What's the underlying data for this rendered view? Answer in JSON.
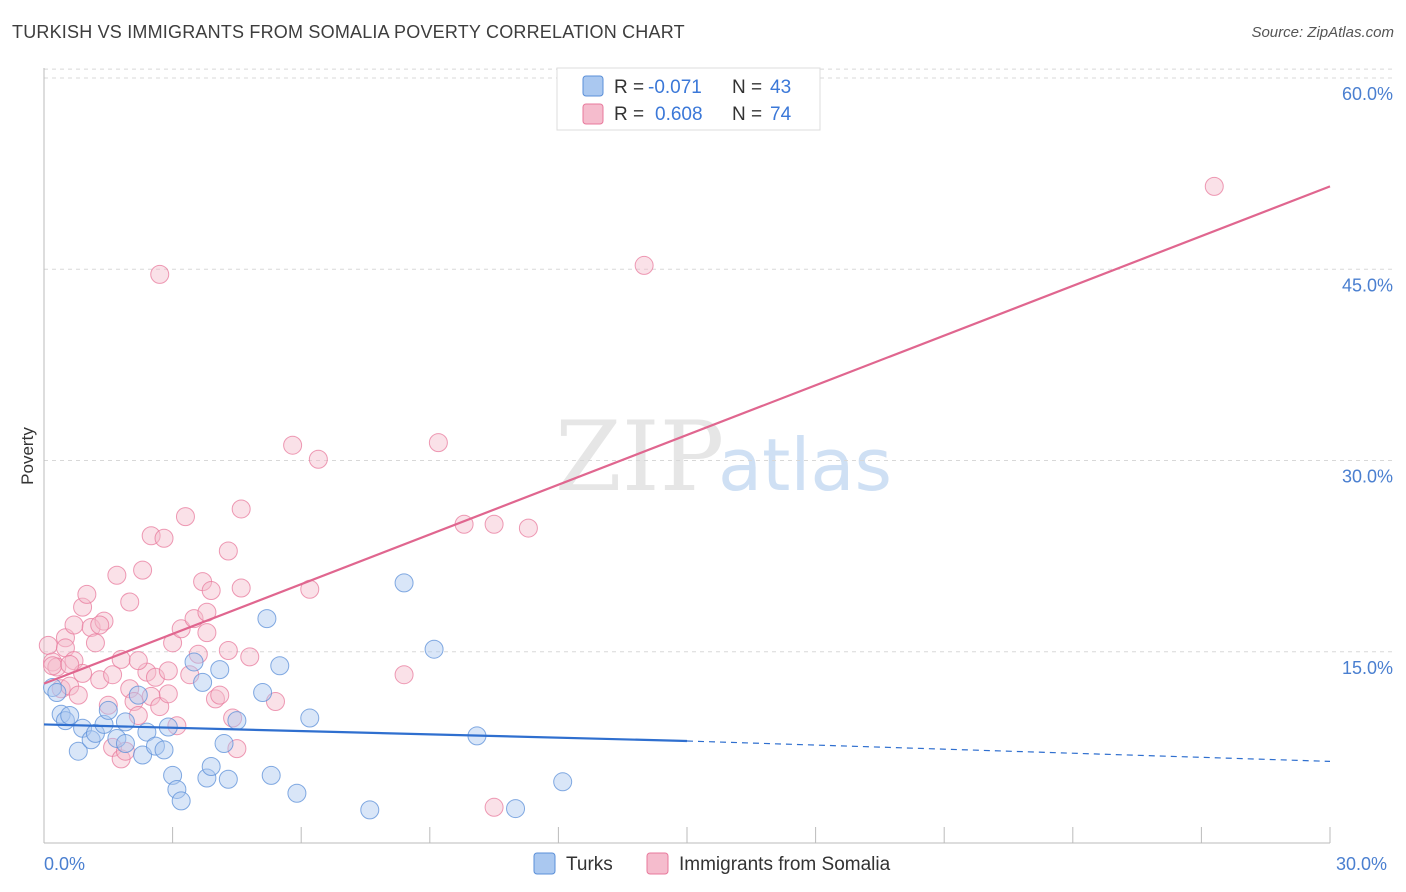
{
  "header": {
    "title": "TURKISH VS IMMIGRANTS FROM SOMALIA POVERTY CORRELATION CHART",
    "source": "Source: ZipAtlas.com"
  },
  "watermark": {
    "zip": "ZIP",
    "atlas": "atlas"
  },
  "colors": {
    "turks": "#5b8fd8",
    "turks_fill": "#aac8f0",
    "somalia": "#e8799c",
    "somalia_fill": "#f5bccd",
    "blue_text": "#3b78d8",
    "grid": "#d8d8d8"
  },
  "legend_stats": [
    {
      "r_label": "R =",
      "r_value": "-0.071",
      "n_label": "N =",
      "n_value": "43"
    },
    {
      "r_label": "R =",
      "r_value": "0.608",
      "n_label": "N =",
      "n_value": "74"
    }
  ],
  "chart_data": {
    "type": "scatter",
    "xlabel": "",
    "ylabel": "Poverty",
    "xlim": [
      0,
      30
    ],
    "ylim": [
      0,
      60
    ],
    "x_tick_labels": {
      "min": "0.0%",
      "max": "30.0%"
    },
    "y_ticks": [
      {
        "value": 15,
        "label": "15.0%"
      },
      {
        "value": 30,
        "label": "30.0%"
      },
      {
        "value": 45,
        "label": "45.0%"
      },
      {
        "value": 60,
        "label": "60.0%"
      }
    ],
    "series": [
      {
        "name": "Turks",
        "trend": {
          "x0": 0,
          "y0": 9.3,
          "x1": 15,
          "y1": 8.0,
          "dash_to_x": 30,
          "dash_to_y": 6.4
        },
        "points": [
          [
            0.2,
            12.2
          ],
          [
            0.3,
            11.8
          ],
          [
            0.4,
            10.1
          ],
          [
            0.5,
            9.6
          ],
          [
            0.6,
            10.0
          ],
          [
            0.8,
            7.2
          ],
          [
            0.9,
            9.0
          ],
          [
            1.1,
            8.1
          ],
          [
            1.2,
            8.6
          ],
          [
            1.4,
            9.3
          ],
          [
            1.5,
            10.4
          ],
          [
            1.7,
            8.2
          ],
          [
            1.9,
            9.5
          ],
          [
            1.9,
            7.8
          ],
          [
            2.2,
            11.6
          ],
          [
            2.3,
            6.9
          ],
          [
            2.4,
            8.7
          ],
          [
            2.6,
            7.6
          ],
          [
            2.8,
            7.3
          ],
          [
            2.9,
            9.1
          ],
          [
            3.0,
            5.3
          ],
          [
            3.1,
            4.2
          ],
          [
            3.2,
            3.3
          ],
          [
            3.5,
            14.2
          ],
          [
            3.7,
            12.6
          ],
          [
            3.8,
            5.1
          ],
          [
            3.9,
            6.0
          ],
          [
            4.1,
            13.6
          ],
          [
            4.2,
            7.8
          ],
          [
            4.3,
            5.0
          ],
          [
            4.5,
            9.6
          ],
          [
            5.1,
            11.8
          ],
          [
            5.2,
            17.6
          ],
          [
            5.3,
            5.3
          ],
          [
            5.5,
            13.9
          ],
          [
            5.9,
            3.9
          ],
          [
            6.2,
            9.8
          ],
          [
            7.6,
            2.6
          ],
          [
            8.4,
            20.4
          ],
          [
            9.1,
            15.2
          ],
          [
            10.1,
            8.4
          ],
          [
            11.0,
            2.7
          ],
          [
            12.1,
            4.8
          ]
        ]
      },
      {
        "name": "Immigrants from Somalia",
        "trend": {
          "x0": 0,
          "y0": 12.5,
          "x1": 30,
          "y1": 51.5
        },
        "points": [
          [
            0.1,
            15.5
          ],
          [
            0.2,
            14.2
          ],
          [
            0.3,
            13.8
          ],
          [
            0.4,
            12.1
          ],
          [
            0.5,
            16.1
          ],
          [
            0.5,
            15.3
          ],
          [
            0.6,
            12.3
          ],
          [
            0.7,
            14.3
          ],
          [
            0.7,
            17.1
          ],
          [
            0.8,
            11.6
          ],
          [
            0.9,
            13.3
          ],
          [
            0.9,
            18.5
          ],
          [
            1.0,
            19.5
          ],
          [
            1.1,
            16.9
          ],
          [
            1.2,
            15.7
          ],
          [
            1.3,
            12.8
          ],
          [
            1.4,
            17.4
          ],
          [
            1.5,
            10.8
          ],
          [
            1.6,
            7.5
          ],
          [
            1.7,
            21.0
          ],
          [
            1.8,
            14.4
          ],
          [
            1.8,
            6.6
          ],
          [
            1.9,
            7.2
          ],
          [
            2.0,
            18.9
          ],
          [
            2.0,
            12.1
          ],
          [
            2.1,
            11.1
          ],
          [
            2.2,
            10.0
          ],
          [
            2.3,
            21.4
          ],
          [
            2.4,
            13.4
          ],
          [
            2.5,
            24.1
          ],
          [
            2.5,
            11.5
          ],
          [
            2.6,
            13.0
          ],
          [
            2.7,
            10.7
          ],
          [
            2.8,
            23.9
          ],
          [
            2.9,
            13.5
          ],
          [
            3.0,
            15.7
          ],
          [
            3.1,
            9.2
          ],
          [
            3.2,
            16.8
          ],
          [
            3.3,
            25.6
          ],
          [
            3.4,
            13.2
          ],
          [
            3.5,
            17.6
          ],
          [
            3.6,
            14.8
          ],
          [
            3.7,
            20.5
          ],
          [
            3.8,
            16.5
          ],
          [
            3.8,
            18.1
          ],
          [
            3.9,
            19.8
          ],
          [
            4.0,
            11.3
          ],
          [
            4.1,
            11.6
          ],
          [
            4.3,
            22.9
          ],
          [
            4.3,
            15.1
          ],
          [
            4.4,
            9.8
          ],
          [
            4.5,
            7.4
          ],
          [
            4.6,
            20.0
          ],
          [
            4.6,
            26.2
          ],
          [
            4.8,
            14.6
          ],
          [
            5.4,
            11.1
          ],
          [
            6.2,
            19.9
          ],
          [
            5.8,
            31.2
          ],
          [
            6.4,
            30.1
          ],
          [
            8.4,
            13.2
          ],
          [
            9.2,
            31.4
          ],
          [
            9.8,
            25.0
          ],
          [
            10.5,
            25.0
          ],
          [
            11.3,
            24.7
          ],
          [
            10.5,
            2.8
          ],
          [
            2.7,
            44.6
          ],
          [
            14.0,
            45.3
          ],
          [
            27.3,
            51.5
          ],
          [
            0.2,
            13.9
          ],
          [
            0.6,
            14.0
          ],
          [
            1.3,
            17.1
          ],
          [
            1.6,
            13.2
          ],
          [
            2.2,
            14.3
          ],
          [
            2.9,
            11.7
          ]
        ]
      }
    ]
  },
  "bottom_legend": [
    {
      "label": "Turks"
    },
    {
      "label": "Immigrants from Somalia"
    }
  ]
}
